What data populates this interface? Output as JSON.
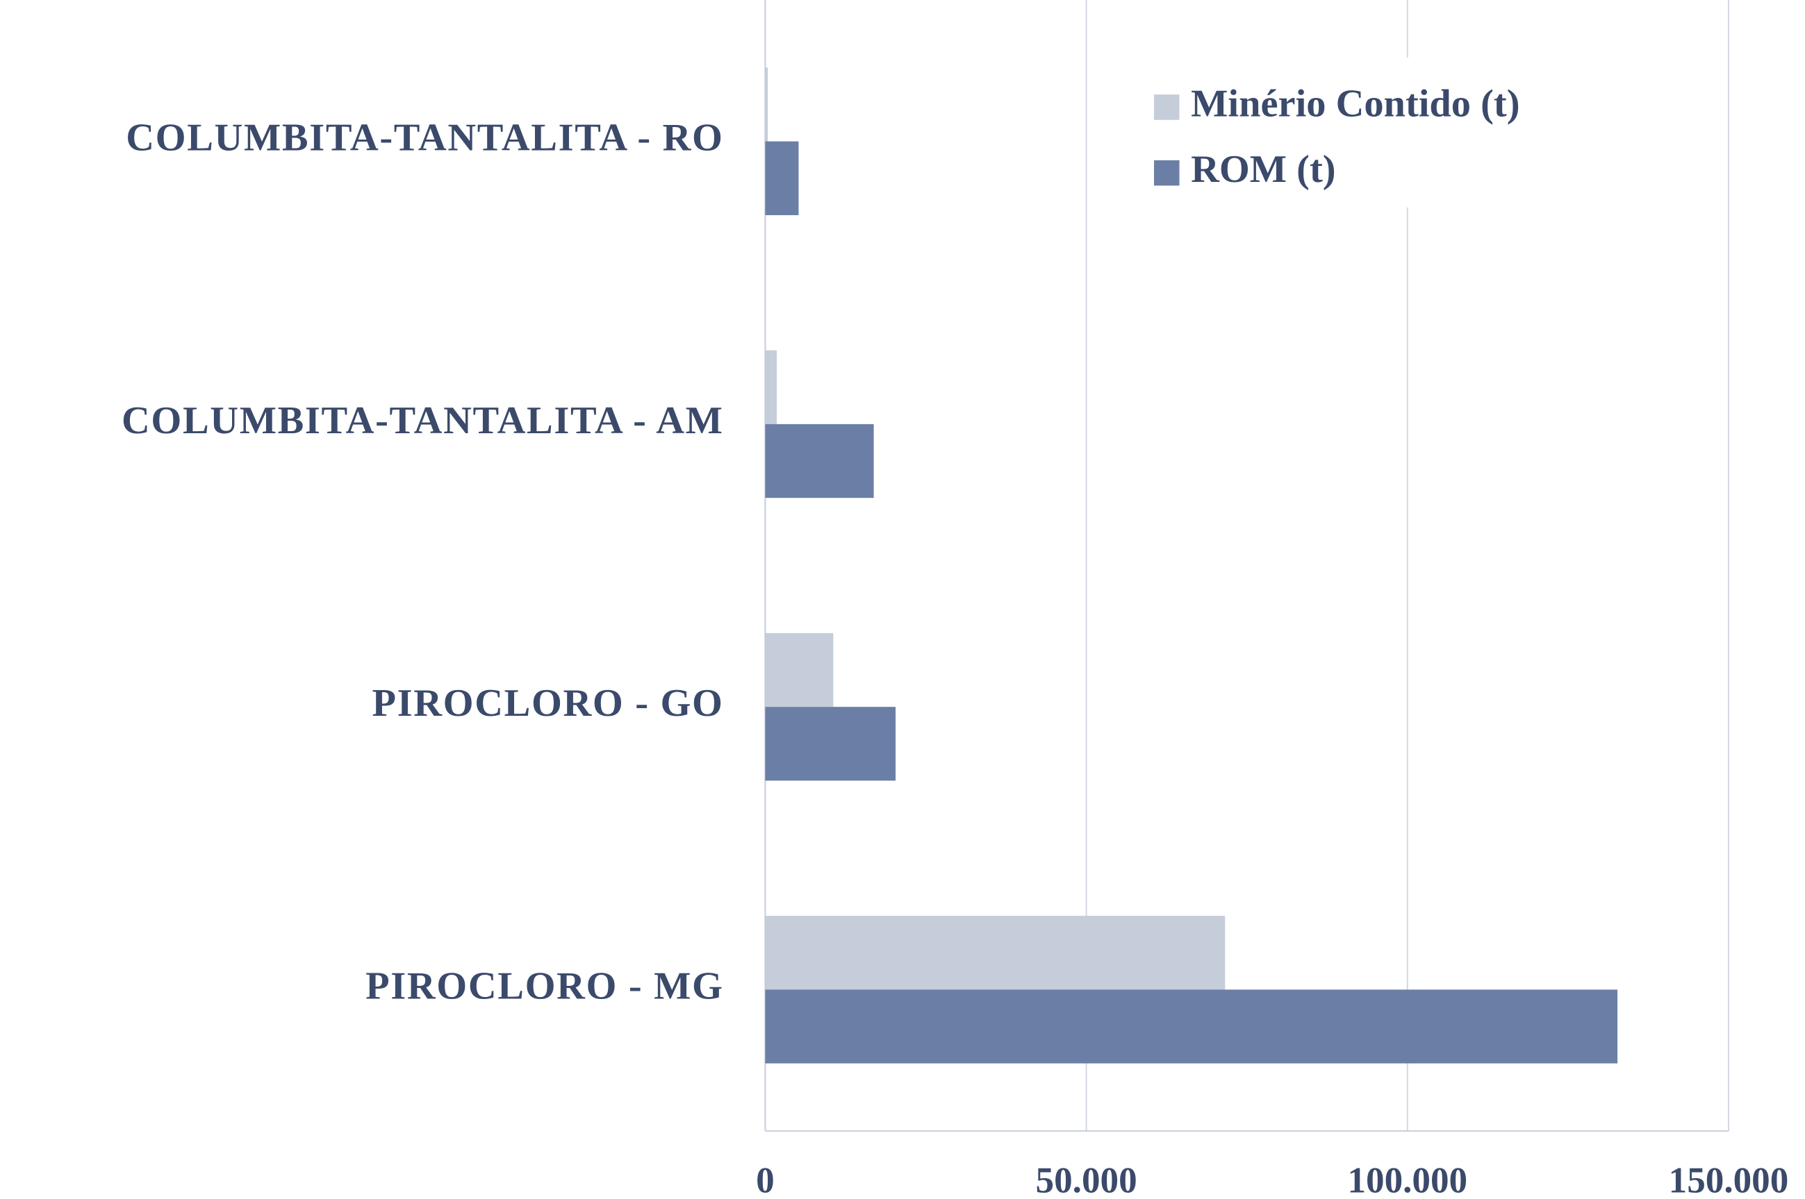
{
  "chart_data": {
    "type": "hbar",
    "categories": [
      "COLUMBITA-TANTALITA - RO",
      "COLUMBITA-TANTALITA - AM",
      "PIROCLORO - GO",
      "PIROCLORO - MG"
    ],
    "series": [
      {
        "name": "Minério Contido (t)",
        "color": "#c5ccda",
        "values": [
          400,
          1800,
          10600,
          71600
        ]
      },
      {
        "name": "ROM (t)",
        "color": "#6b7fa6",
        "values": [
          5200,
          16900,
          20300,
          132700
        ]
      }
    ],
    "xlim": [
      0,
      150000
    ],
    "xticks": [
      0,
      {
        "value": 50000,
        "label": "50.000"
      },
      {
        "value": 100000,
        "label": "100.000"
      },
      {
        "value": 150000,
        "label": "150.000"
      }
    ],
    "grid": true,
    "legend": "top-right"
  }
}
